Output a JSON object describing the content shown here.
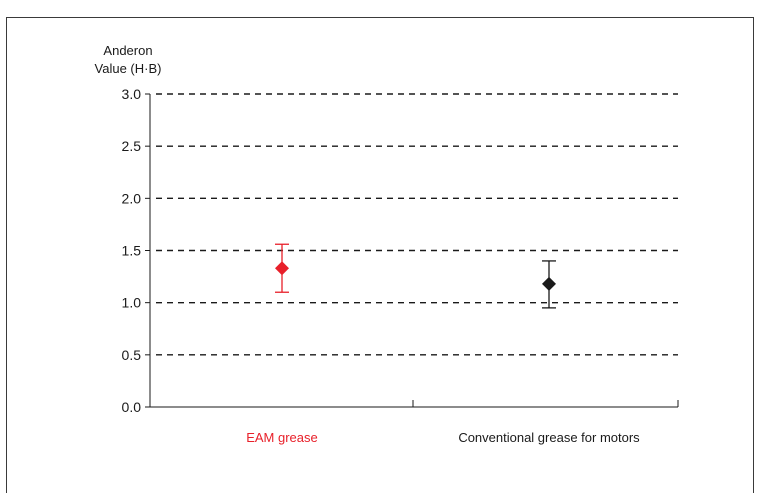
{
  "chart_data": {
    "type": "scatter",
    "title": "",
    "ylabel_lines": [
      "Anderon",
      "Value (H·B)"
    ],
    "xlabel": "",
    "ylim": [
      0,
      3.0
    ],
    "yticks": [
      0.0,
      0.5,
      1.0,
      1.5,
      2.0,
      2.5,
      3.0
    ],
    "ytick_labels": [
      "0.0",
      "0.5",
      "1.0",
      "1.5",
      "2.0",
      "2.5",
      "3.0"
    ],
    "grid": true,
    "grid_style": "dashed",
    "categories": [
      "EAM grease",
      "Conventional grease for motors"
    ],
    "series": [
      {
        "category": "EAM grease",
        "value": 1.33,
        "error_low": 1.1,
        "error_high": 1.56,
        "color": "#e8202a",
        "marker": "diamond"
      },
      {
        "category": "Conventional grease for motors",
        "value": 1.18,
        "error_low": 0.95,
        "error_high": 1.4,
        "color": "#1a1a1a",
        "marker": "diamond"
      }
    ],
    "category_label_colors": [
      "#e8202a",
      "#1a1a1a"
    ]
  }
}
